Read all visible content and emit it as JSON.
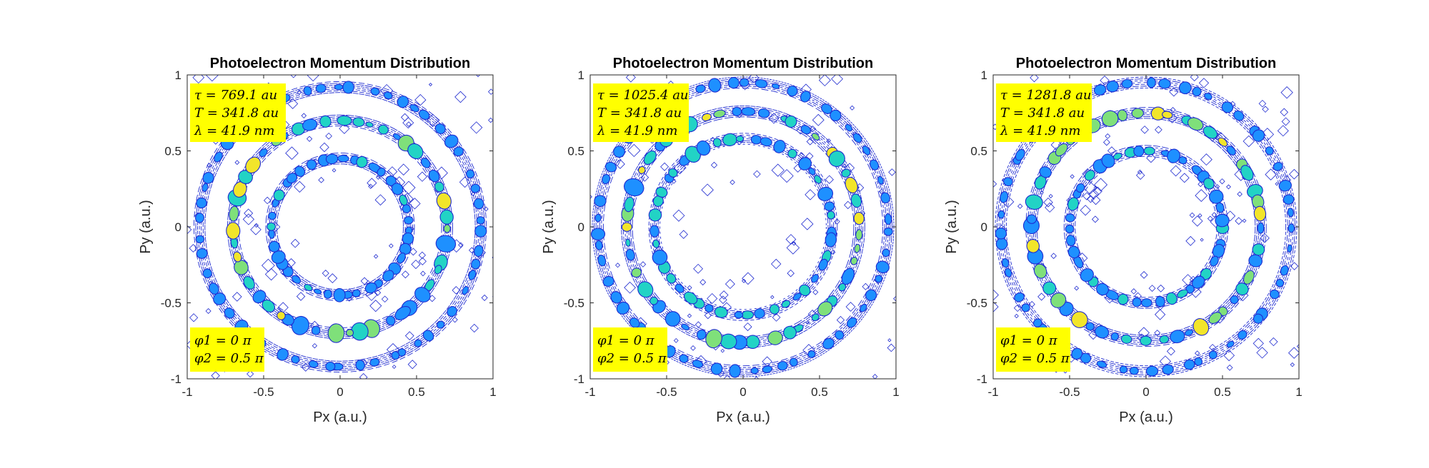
{
  "figure": {
    "background": "#ffffff",
    "annotation_bg": "#ffff00",
    "line_color": "#1f2bd0"
  },
  "chart_data": [
    {
      "type": "contour",
      "title": "Photoelectron Momentum Distribution",
      "xlabel": "Px (a.u.)",
      "ylabel": "Py (a.u.)",
      "xlim": [
        -1,
        1
      ],
      "ylim": [
        -1,
        1
      ],
      "xticks": [
        "-1",
        "-0.5",
        "0",
        "0.5",
        "1"
      ],
      "yticks": [
        "-1",
        "-0.5",
        "0",
        "0.5",
        "1"
      ],
      "grid": false,
      "rings": [
        {
          "radius": 0.45,
          "intensity": 0.55
        },
        {
          "radius": 0.7,
          "intensity": 1.0
        },
        {
          "radius": 0.92,
          "intensity": 0.5
        }
      ],
      "annotations": {
        "top": [
          "τ = 769.1 au",
          "T = 341.8 au",
          "λ = 41.9 nm"
        ],
        "bottom": [
          "φ1 = 0 π",
          "φ2 = 0.5 π"
        ]
      }
    },
    {
      "type": "contour",
      "title": "Photoelectron Momentum Distribution",
      "xlabel": "Px (a.u.)",
      "ylabel": "Py (a.u.)",
      "xlim": [
        -1,
        1
      ],
      "ylim": [
        -1,
        1
      ],
      "xticks": [
        "-1",
        "-0.5",
        "0",
        "0.5",
        "1"
      ],
      "yticks": [
        "-1",
        "-0.5",
        "0",
        "0.5",
        "1"
      ],
      "grid": false,
      "rings": [
        {
          "radius": 0.58,
          "intensity": 0.75
        },
        {
          "radius": 0.76,
          "intensity": 1.0
        },
        {
          "radius": 0.95,
          "intensity": 0.5
        }
      ],
      "annotations": {
        "top": [
          "τ = 1025.4 au",
          "T = 341.8 au",
          "λ = 41.9 nm"
        ],
        "bottom": [
          "φ1 = 0 π",
          "φ2 = 0.5 π"
        ]
      }
    },
    {
      "type": "contour",
      "title": "Photoelectron Momentum Distribution",
      "xlabel": "Px (a.u.)",
      "ylabel": "Py (a.u.)",
      "xlim": [
        -1,
        1
      ],
      "ylim": [
        -1,
        1
      ],
      "xticks": [
        "-1",
        "-0.5",
        "0",
        "0.5",
        "1"
      ],
      "yticks": [
        "-1",
        "-0.5",
        "0",
        "0.5",
        "1"
      ],
      "grid": false,
      "rings": [
        {
          "radius": 0.5,
          "intensity": 0.65
        },
        {
          "radius": 0.75,
          "intensity": 1.0
        },
        {
          "radius": 0.95,
          "intensity": 0.5
        }
      ],
      "annotations": {
        "top": [
          "τ = 1281.8 au",
          "T = 341.8 au",
          "λ = 41.9 nm"
        ],
        "bottom": [
          "φ1 = 0 π",
          "φ2 = 0.5 π"
        ]
      }
    }
  ]
}
